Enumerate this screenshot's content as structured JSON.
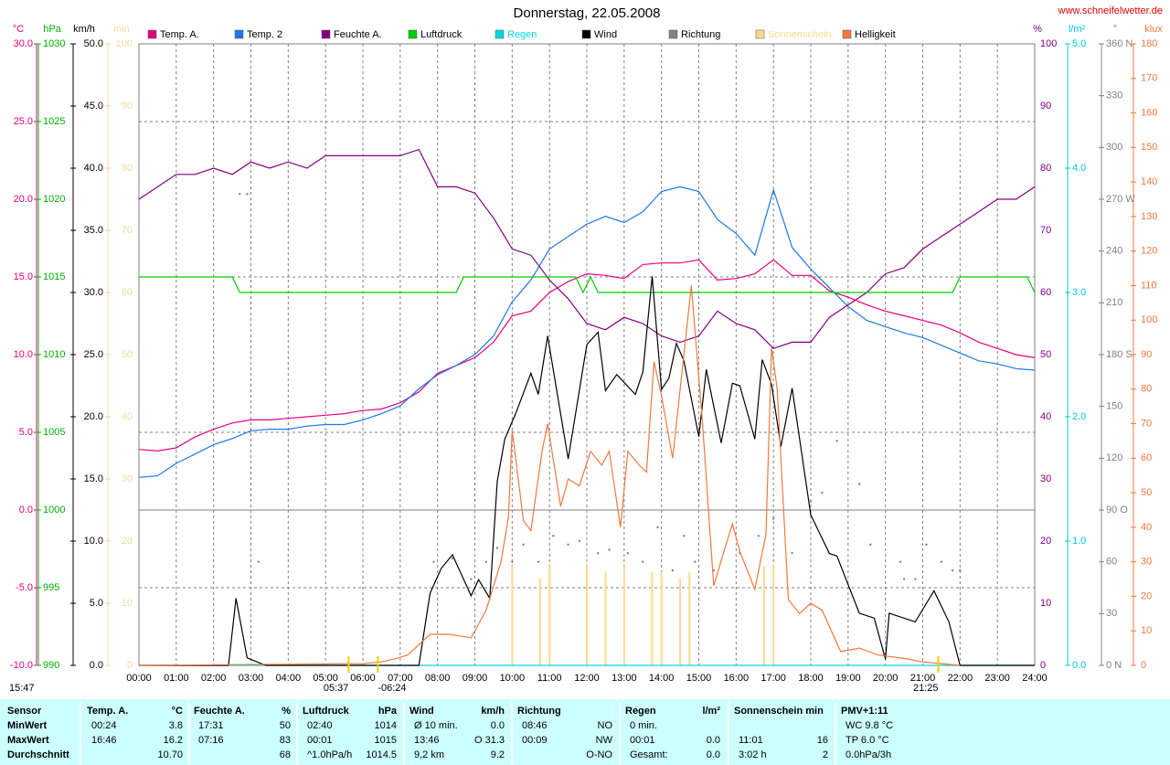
{
  "chart_data": {
    "type": "line",
    "title": "Donnerstag, 22.05.2008",
    "source": "www.schneifelwetter.de",
    "xlim": [
      0,
      24
    ],
    "xticks": [
      {
        "value": 0,
        "label": "00:00"
      },
      {
        "value": 1,
        "label": "01:00"
      },
      {
        "value": 2,
        "label": "02:00"
      },
      {
        "value": 3,
        "label": "03:00"
      },
      {
        "value": 4,
        "label": "04:00"
      },
      {
        "value": 5,
        "label": "05:00"
      },
      {
        "value": 6,
        "label": "06:00"
      },
      {
        "value": 7,
        "label": "07:00"
      },
      {
        "value": 8,
        "label": "08:00"
      },
      {
        "value": 9,
        "label": "09:00"
      },
      {
        "value": 10,
        "label": "10:00"
      },
      {
        "value": 11,
        "label": "11:00"
      },
      {
        "value": 12,
        "label": "12:00"
      },
      {
        "value": 13,
        "label": "13:00"
      },
      {
        "value": 14,
        "label": "14:00"
      },
      {
        "value": 15,
        "label": "15:00"
      },
      {
        "value": 16,
        "label": "16:00"
      },
      {
        "value": 17,
        "label": "17:00"
      },
      {
        "value": 18,
        "label": "18:00"
      },
      {
        "value": 19,
        "label": "19:00"
      },
      {
        "value": 20,
        "label": "20:00"
      },
      {
        "value": 21,
        "label": "21:00"
      },
      {
        "value": 22,
        "label": "22:00"
      },
      {
        "value": 23,
        "label": "23:00"
      },
      {
        "value": 24,
        "label": "24:00"
      }
    ],
    "grid": true,
    "hgrid": [
      -5,
      5,
      15,
      25
    ],
    "zero_line": 0,
    "axes": [
      {
        "unit": "°C",
        "color": "#e6007e",
        "side": "left",
        "lim": [
          -10,
          30
        ],
        "ticks": [
          {
            "value": 30,
            "label": "30.0"
          },
          {
            "value": 25,
            "label": "25.0"
          },
          {
            "value": 20,
            "label": "20.0"
          },
          {
            "value": 15,
            "label": "15.0"
          },
          {
            "value": 10,
            "label": "10.0"
          },
          {
            "value": 5,
            "label": "5.0"
          },
          {
            "value": 0,
            "label": "0.0"
          },
          {
            "value": -5,
            "label": "-5.0"
          },
          {
            "value": -10,
            "label": "-10.0"
          }
        ]
      },
      {
        "unit": "hPa",
        "color": "#00b000",
        "side": "left",
        "lim": [
          990,
          1030
        ],
        "ticks": [
          1030,
          1025,
          1020,
          1015,
          1010,
          1005,
          1000,
          995,
          990
        ]
      },
      {
        "unit": "km/h",
        "color": "#000000",
        "side": "left",
        "lim": [
          0,
          50
        ],
        "ticks": [
          {
            "value": 50,
            "label": "50.0"
          },
          {
            "value": 45,
            "label": "45.0"
          },
          {
            "value": 40,
            "label": "40.0"
          },
          {
            "value": 35,
            "label": "35.0"
          },
          {
            "value": 30,
            "label": "30.0"
          },
          {
            "value": 25,
            "label": "25.0"
          },
          {
            "value": 20,
            "label": "20.0"
          },
          {
            "value": 15,
            "label": "15.0"
          },
          {
            "value": 10,
            "label": "10.0"
          },
          {
            "value": 5,
            "label": "5.0"
          },
          {
            "value": 0,
            "label": "0.0"
          }
        ]
      },
      {
        "unit": "min",
        "color": "#f8d8a0",
        "side": "left",
        "lim": [
          0,
          100
        ],
        "ticks": [
          100,
          90,
          80,
          70,
          60,
          50,
          40,
          30,
          20,
          10,
          0
        ]
      },
      {
        "unit": "%",
        "color": "#800080",
        "side": "right",
        "lim": [
          0,
          100
        ],
        "ticks": [
          100,
          90,
          80,
          70,
          60,
          50,
          40,
          30,
          20,
          10,
          0
        ]
      },
      {
        "unit": "l/m²",
        "color": "#00c8d8",
        "side": "right",
        "lim": [
          0,
          5
        ],
        "ticks": [
          {
            "value": 5,
            "label": "5.0"
          },
          {
            "value": 4,
            "label": "4.0"
          },
          {
            "value": 3,
            "label": "3.0"
          },
          {
            "value": 2,
            "label": "2.0"
          },
          {
            "value": 1,
            "label": "1.0"
          },
          {
            "value": 0,
            "label": "0.0"
          }
        ]
      },
      {
        "unit": "°",
        "color": "#808080",
        "side": "right",
        "lim": [
          0,
          360
        ],
        "ticks": [
          {
            "value": 360,
            "label": "360 N"
          },
          330,
          300,
          {
            "value": 270,
            "label": "270 W"
          },
          240,
          210,
          {
            "value": 180,
            "label": "180 S"
          },
          150,
          120,
          {
            "value": 90,
            "label": "90 O"
          },
          60,
          30,
          {
            "value": 0,
            "label": "0 N"
          }
        ]
      },
      {
        "unit": "klux",
        "color": "#f07840",
        "side": "right",
        "lim": [
          0,
          180
        ],
        "ticks": [
          180,
          170,
          160,
          150,
          140,
          130,
          120,
          110,
          100,
          90,
          80,
          70,
          60,
          50,
          40,
          30,
          20,
          10,
          0
        ]
      }
    ],
    "x": [
      0,
      0.5,
      1,
      1.5,
      2,
      2.5,
      3,
      3.5,
      4,
      4.5,
      5,
      5.5,
      6,
      6.5,
      7,
      7.5,
      8,
      8.5,
      9,
      9.5,
      10,
      10.5,
      11,
      11.5,
      12,
      12.5,
      13,
      13.5,
      14,
      14.5,
      15,
      15.5,
      16,
      16.5,
      17,
      17.5,
      18,
      18.5,
      19,
      19.5,
      20,
      20.5,
      21,
      21.5,
      22,
      22.5,
      23,
      23.5,
      24
    ],
    "series": [
      {
        "name": "Temp. A.",
        "color": "#e6007e",
        "axis": 0,
        "style": "line",
        "values": [
          3.9,
          3.8,
          4.0,
          4.7,
          5.2,
          5.6,
          5.8,
          5.8,
          5.9,
          6.0,
          6.1,
          6.2,
          6.4,
          6.5,
          6.9,
          7.6,
          8.8,
          9.3,
          9.8,
          10.8,
          12.5,
          12.8,
          14.0,
          14.7,
          15.2,
          15.1,
          14.9,
          15.8,
          15.9,
          15.9,
          16.1,
          14.8,
          14.9,
          15.2,
          16.1,
          15.1,
          15.1,
          14.1,
          13.7,
          13.2,
          12.8,
          12.5,
          12.2,
          11.9,
          11.4,
          10.8,
          10.4,
          10.0,
          9.8
        ]
      },
      {
        "name": "Temp. 2",
        "color": "#1e78e6",
        "axis": 0,
        "style": "line",
        "values": [
          2.1,
          2.2,
          3.0,
          3.6,
          4.2,
          4.6,
          5.1,
          5.2,
          5.2,
          5.4,
          5.5,
          5.5,
          5.8,
          6.2,
          6.7,
          7.8,
          8.7,
          9.3,
          10.0,
          11.2,
          13.4,
          14.8,
          16.8,
          17.6,
          18.4,
          18.9,
          18.5,
          19.2,
          20.5,
          20.8,
          20.5,
          18.7,
          17.8,
          16.4,
          20.6,
          16.9,
          15.5,
          14.3,
          13.1,
          12.2,
          11.8,
          11.4,
          11.1,
          10.6,
          10.1,
          9.6,
          9.4,
          9.1,
          9.0
        ]
      },
      {
        "name": "Feuchte A.",
        "color": "#800080",
        "axis": 4,
        "style": "line",
        "values": [
          75,
          77,
          79,
          79,
          80,
          79,
          81,
          80,
          81,
          80,
          82,
          82,
          82,
          82,
          82,
          83,
          77,
          77,
          76,
          72,
          67,
          66,
          62,
          59,
          55,
          54,
          56,
          55,
          53,
          52,
          53,
          57,
          55,
          54,
          51,
          52,
          52,
          56,
          58,
          60,
          63,
          64,
          67,
          69,
          71,
          73,
          75,
          75,
          77
        ]
      },
      {
        "name": "Luftdruck",
        "color": "#00cc00",
        "axis": 1,
        "style": "line",
        "x": [
          0,
          2.5,
          2.7,
          8.5,
          8.7,
          11.7,
          11.9,
          12.1,
          12.3,
          21.8,
          22.0,
          23.8,
          24
        ],
        "values": [
          1015,
          1015,
          1014,
          1014,
          1015,
          1015,
          1014,
          1015,
          1014,
          1014,
          1015,
          1015,
          1014
        ]
      },
      {
        "name": "Regen",
        "color": "#00d8e0",
        "axis": 5,
        "style": "line",
        "x": [
          0,
          24
        ],
        "values": [
          0,
          0
        ]
      },
      {
        "name": "Wind",
        "color": "#000000",
        "axis": 2,
        "style": "line",
        "x": [
          0,
          2.4,
          2.6,
          2.9,
          3.4,
          7.5,
          7.8,
          8.1,
          8.4,
          8.9,
          9.1,
          9.4,
          9.6,
          9.8,
          10.1,
          10.5,
          10.7,
          10.95,
          11.5,
          12.0,
          12.3,
          12.5,
          12.8,
          13.3,
          13.5,
          13.75,
          14.0,
          14.2,
          14.4,
          14.6,
          15.0,
          15.2,
          15.6,
          15.9,
          16.1,
          16.5,
          16.7,
          16.95,
          17.2,
          17.5,
          18.0,
          18.5,
          18.7,
          19.3,
          19.7,
          20.0,
          20.1,
          20.8,
          21.3,
          21.7,
          22.0,
          24
        ],
        "values": [
          0,
          0,
          5.4,
          0.6,
          0,
          0,
          5.8,
          7.8,
          8.9,
          5.6,
          6.9,
          5.4,
          14.8,
          18.2,
          20.3,
          23.5,
          21.8,
          26.5,
          16.6,
          25.8,
          26.8,
          22.1,
          23.4,
          21.8,
          23.6,
          31.3,
          22.2,
          23.1,
          25.9,
          24.5,
          18.4,
          23.8,
          17.9,
          22.7,
          22.5,
          18.2,
          24.6,
          22.6,
          17.6,
          22.3,
          12.1,
          9.0,
          8.8,
          4.2,
          3.8,
          0.5,
          4.2,
          3.5,
          6.0,
          3.5,
          0,
          0
        ]
      },
      {
        "name": "Richtung",
        "color": "#808080",
        "axis": 6,
        "style": "dots",
        "x": [
          2.7,
          2.9,
          3.2,
          7.9,
          8.4,
          8.9,
          9.3,
          9.6,
          10.0,
          10.3,
          10.7,
          11.1,
          11.5,
          11.8,
          12.3,
          12.6,
          13.1,
          13.5,
          13.9,
          14.3,
          14.6,
          14.9,
          15.4,
          16.1,
          16.6,
          17.0,
          17.5,
          18.0,
          18.3,
          18.7,
          19.3,
          19.6,
          20.4,
          20.5,
          20.8,
          21.1,
          21.5,
          21.8,
          22.0
        ],
        "values": [
          273,
          273,
          60,
          60,
          62,
          50,
          60,
          68,
          60,
          70,
          60,
          75,
          70,
          72,
          65,
          67,
          65,
          60,
          80,
          55,
          75,
          60,
          55,
          65,
          75,
          85,
          65,
          95,
          100,
          130,
          105,
          70,
          60,
          50,
          50,
          70,
          60,
          55,
          55
        ]
      },
      {
        "name": "Sonnenschein",
        "color": "#ffd890",
        "axis": 3,
        "style": "bars",
        "x": [
          10.0,
          10.75,
          11.0,
          12.0,
          12.5,
          13.0,
          13.75,
          14.0,
          14.5,
          14.75,
          16.75,
          17.0
        ],
        "values": [
          16,
          14,
          16,
          16,
          15,
          16,
          15,
          15,
          14,
          15,
          16,
          16
        ]
      },
      {
        "name": "Helligkeit",
        "color": "#f07840",
        "axis": 7,
        "style": "line",
        "x": [
          0,
          6.0,
          6.5,
          6.9,
          7.2,
          7.5,
          7.8,
          8.3,
          8.9,
          9.3,
          9.7,
          9.9,
          10.0,
          10.3,
          10.5,
          10.8,
          10.95,
          11.3,
          11.5,
          11.8,
          12.1,
          12.4,
          12.6,
          12.9,
          13.1,
          13.4,
          13.6,
          13.8,
          14.0,
          14.3,
          14.6,
          14.8,
          15.1,
          15.4,
          15.7,
          15.9,
          16.1,
          16.5,
          16.8,
          16.95,
          17.1,
          17.4,
          17.7,
          18.0,
          18.3,
          18.8,
          19.3,
          19.8,
          20.5,
          21.0,
          21.5,
          22.0
        ],
        "values": [
          0,
          0.5,
          1,
          2,
          3,
          6,
          9,
          9,
          8,
          16,
          30,
          43,
          68,
          42,
          39,
          62,
          70,
          46,
          54,
          52,
          62,
          58,
          62,
          40,
          62,
          58,
          56,
          88,
          78,
          60,
          90,
          110,
          70,
          23,
          34,
          41,
          33,
          22,
          38,
          92,
          80,
          19,
          15,
          18,
          16,
          4,
          5,
          3,
          2,
          1,
          0.5,
          0
        ]
      }
    ],
    "events": [
      {
        "x": 5.617,
        "label": "05:37"
      },
      {
        "x": 6.4,
        "label": "-06:24"
      },
      {
        "x": 21.417,
        "label": "21:25"
      }
    ],
    "footnote": "15:47"
  },
  "table": {
    "corner": "Sensor",
    "columns": [
      {
        "name": "Temp. A.",
        "unit": "°C"
      },
      {
        "name": "Feuchte A.",
        "unit": "%"
      },
      {
        "name": "Luftdruck",
        "unit": "hPa"
      },
      {
        "name": "Wind",
        "unit": "km/h"
      },
      {
        "name": "Richtung",
        "unit": null
      },
      {
        "name": "Regen",
        "unit": "l/m²"
      },
      {
        "name": "Sonnenschein min",
        "unit": null
      },
      {
        "name": "PMV+1:11",
        "unit": null
      }
    ],
    "rows": [
      {
        "label": "MinWert",
        "cells": [
          [
            "00:24",
            "3.8"
          ],
          [
            "17:31",
            "50"
          ],
          [
            "02:40",
            "1014"
          ],
          [
            "Ø 10 min.",
            "0.0"
          ],
          [
            "08:46",
            "NO"
          ],
          [
            "0 min.",
            null
          ],
          [
            null,
            null
          ],
          [
            "WC 9.8 °C",
            null
          ]
        ]
      },
      {
        "label": "MaxWert",
        "cells": [
          [
            "16:46",
            "16.2"
          ],
          [
            "07:16",
            "83"
          ],
          [
            "00:01",
            "1015"
          ],
          [
            "13:46",
            "O 31.3"
          ],
          [
            "00:09",
            "NW"
          ],
          [
            "00:01",
            "0.0"
          ],
          [
            "11:01",
            "16"
          ],
          [
            "TP 6.0 °C",
            null
          ]
        ]
      },
      {
        "label": "Durchschnitt",
        "cells": [
          [
            null,
            "10.70"
          ],
          [
            null,
            "68"
          ],
          [
            "^1.0hPa/h",
            "1014.5"
          ],
          [
            "9,2 km",
            "9.2"
          ],
          [
            null,
            "O-NO"
          ],
          [
            "Gesamt:",
            "0.0"
          ],
          [
            "3:02 h",
            "2"
          ],
          [
            "0.0hPa/3h",
            null
          ]
        ]
      }
    ]
  }
}
